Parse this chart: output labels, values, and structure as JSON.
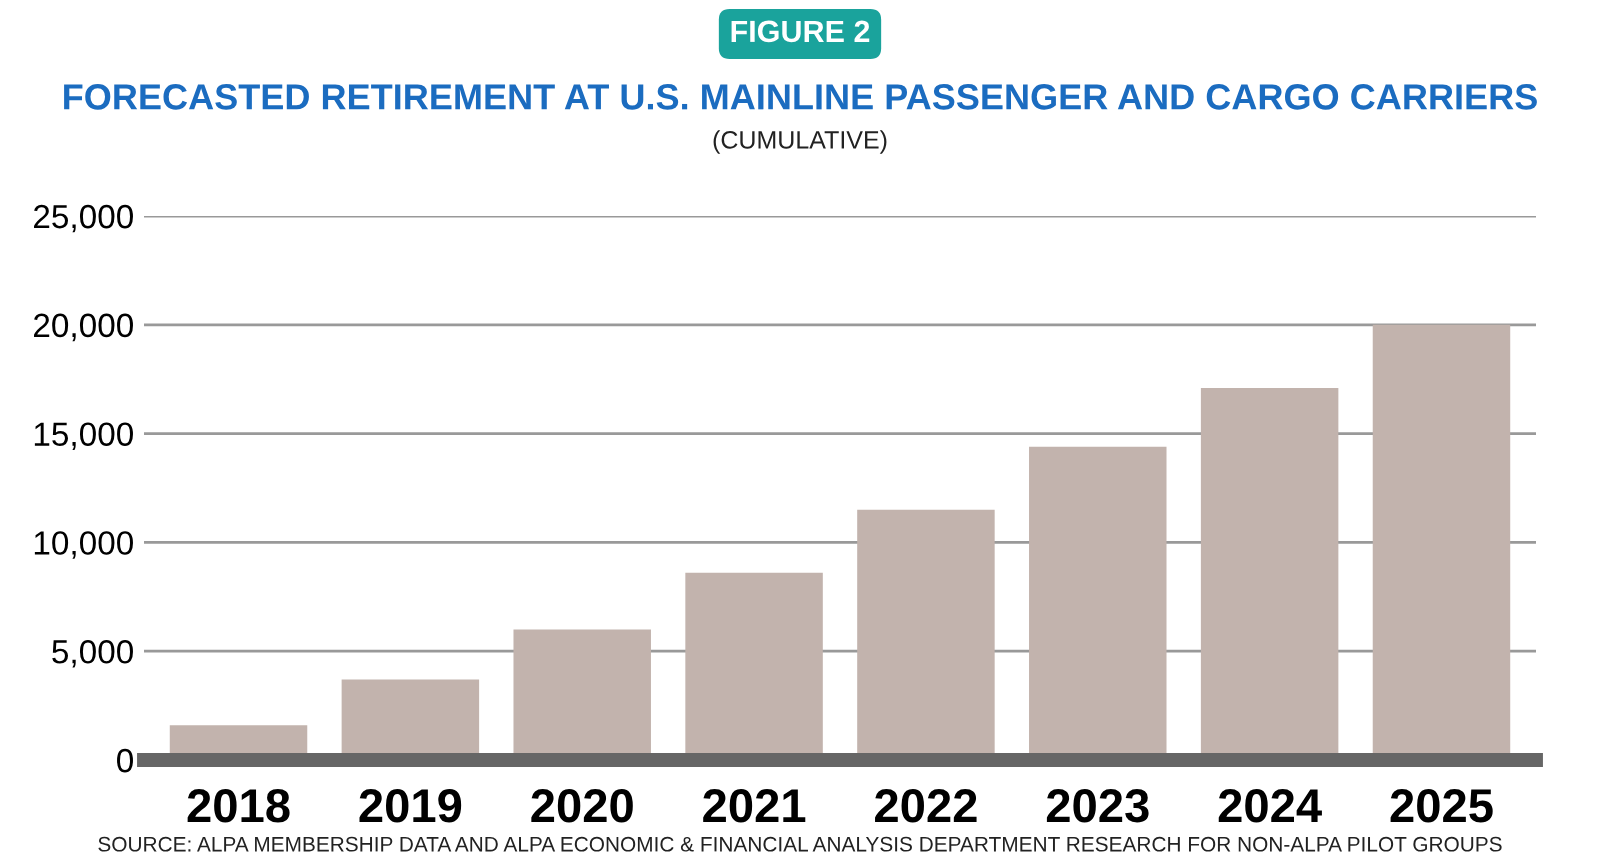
{
  "chart_data": {
    "type": "bar",
    "title": "FORECASTED RETIREMENT AT U.S. MAINLINE PASSENGER AND CARGO CARRIERS",
    "subtitle": "(CUMULATIVE)",
    "annotations": [
      "FIGURE 2",
      "SOURCE: ALPA MEMBERSHIP DATA AND ALPA ECONOMIC & FINANCIAL ANALYSIS DEPARTMENT RESEARCH FOR NON-ALPA PILOT GROUPS"
    ],
    "categories": [
      "2018",
      "2019",
      "2020",
      "2021",
      "2022",
      "2023",
      "2024",
      "2025"
    ],
    "values": [
      1600,
      3700,
      6000,
      8600,
      11500,
      14400,
      17100,
      20000
    ],
    "color": "#c2b3ad",
    "ylim": [
      0,
      25000
    ],
    "yticks": [
      {
        "value": 0,
        "label": "0"
      },
      {
        "value": 5000,
        "label": "5,000"
      },
      {
        "value": 10000,
        "label": "10,000"
      },
      {
        "value": 15000,
        "label": "15,000"
      },
      {
        "value": 20000,
        "label": "20,000"
      },
      {
        "value": 25000,
        "label": "25,000"
      }
    ],
    "grid": "y",
    "legend": false
  }
}
